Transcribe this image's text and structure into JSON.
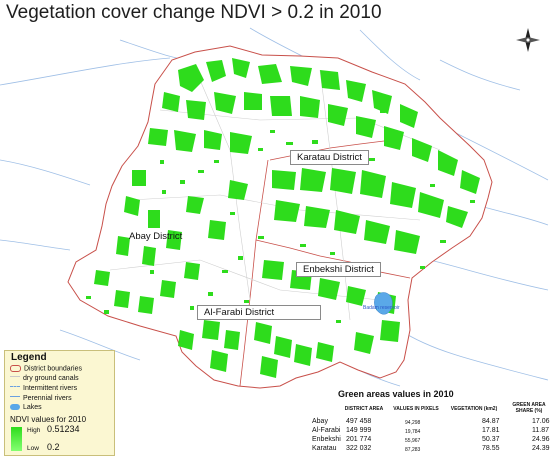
{
  "title": "Vegetation cover change NDVI > 0.2 in 2010",
  "districts": {
    "karatau": "Karatau District",
    "abay": "Abay District",
    "enbekshi": "Enbekshi District",
    "al_farabi": "Al-Farabi District"
  },
  "reservoir_label": "Badam reservoir",
  "legend": {
    "title": "Legend",
    "items": [
      "District boundaries",
      "dry ground canals",
      "Intermittent rivers",
      "Perennial rivers",
      "Lakes"
    ],
    "ndvi_title": "NDVI values for 2010",
    "high_label": "High",
    "high_value": "0.51234",
    "low_label": "Low",
    "low_value": "0.2"
  },
  "colors": {
    "vegetation": "#2edc1c",
    "boundary": "#c8504a",
    "canals": "#c9c9c9",
    "rivers": "#6aa0e0",
    "lakes": "#5aa8e8",
    "legend_bg": "#fbf7d2"
  },
  "table": {
    "title": "Green areas values in 2010",
    "headers": [
      "DISTRICT AREA",
      "VALUES IN PIXELS",
      "VEGETATION (km2)",
      "GREEN AREA SHARE (%)"
    ],
    "rows": [
      {
        "name": "Abay",
        "area": "497 458",
        "pixels": "94,298",
        "veg": "84.87",
        "share": "17.06"
      },
      {
        "name": "Al-Farabi",
        "area": "149 999",
        "pixels": "19,784",
        "veg": "17.81",
        "share": "11.87"
      },
      {
        "name": "Enbekshi",
        "area": "201 774",
        "pixels": "55,967",
        "veg": "50.37",
        "share": "24.96"
      },
      {
        "name": "Karatau",
        "area": "322 032",
        "pixels": "87,283",
        "veg": "78.55",
        "share": "24.39"
      }
    ]
  }
}
